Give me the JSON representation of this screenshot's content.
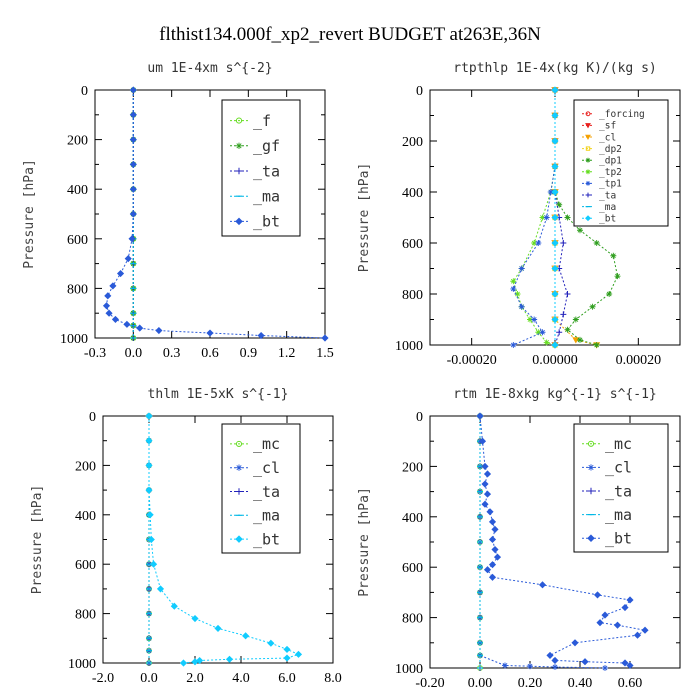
{
  "title": "flthist134.000f_xp2_revert  BUDGET at263E,36N",
  "colors": {
    "red": "#e8201e",
    "orange": "#f4a000",
    "yellow": "#f2d21a",
    "green": "#2f9e1e",
    "lightgreen": "#66dd22",
    "blue": "#2a5ad8",
    "darkblue": "#2222bb",
    "cyan": "#00b8e6",
    "brightcyan": "#11ccff",
    "black": "#000000"
  },
  "chart_data": [
    {
      "type": "line",
      "title": "um  1E-4xm s^{-2}",
      "ylabel": "Pressure [hPa]",
      "xlim": [
        -0.3,
        1.5
      ],
      "ylim": [
        1000,
        0
      ],
      "xticks": [
        "-0.3",
        "0.0",
        "0.3",
        "0.6",
        "0.9",
        "1.2",
        "1.5"
      ],
      "yticks": [
        "0",
        "200",
        "400",
        "600",
        "800",
        "1000"
      ],
      "legend_position": "top-right",
      "series": [
        {
          "name": "_f",
          "color": "#66dd22",
          "marker": "circle",
          "x": [
            0,
            0,
            0,
            0,
            0,
            0,
            0,
            0,
            0,
            0,
            0,
            0
          ],
          "y": [
            0,
            100,
            200,
            300,
            400,
            500,
            600,
            700,
            800,
            900,
            950,
            1000
          ]
        },
        {
          "name": "_gf",
          "color": "#2f9e1e",
          "marker": "star",
          "x": [
            0,
            0,
            0,
            0,
            0,
            0,
            0,
            0,
            0,
            0,
            0,
            0
          ],
          "y": [
            0,
            100,
            200,
            300,
            400,
            500,
            600,
            700,
            800,
            900,
            950,
            1000
          ]
        },
        {
          "name": "_ta",
          "color": "#2222bb",
          "marker": "plus",
          "x": [
            0,
            0,
            0,
            0,
            0,
            0,
            0,
            0,
            0,
            0,
            0,
            0
          ],
          "y": [
            0,
            100,
            200,
            300,
            400,
            500,
            600,
            700,
            800,
            900,
            950,
            1000
          ]
        },
        {
          "name": "_ma",
          "color": "#00b8e6",
          "marker": "dash",
          "x": [
            0,
            0,
            0,
            0,
            0,
            0,
            0,
            0,
            0,
            0,
            0,
            0
          ],
          "y": [
            0,
            100,
            200,
            300,
            400,
            500,
            600,
            700,
            800,
            900,
            950,
            1000
          ]
        },
        {
          "name": "_bt",
          "color": "#2a5ad8",
          "marker": "diamond",
          "x": [
            0,
            0,
            0,
            0,
            0,
            0,
            -0.01,
            -0.04,
            -0.1,
            -0.16,
            -0.2,
            -0.21,
            -0.19,
            -0.14,
            -0.05,
            0.05,
            0.2,
            0.6,
            1.0,
            1.5
          ],
          "y": [
            0,
            100,
            200,
            300,
            400,
            500,
            600,
            680,
            740,
            790,
            830,
            870,
            900,
            925,
            945,
            960,
            970,
            980,
            990,
            1000
          ]
        }
      ]
    },
    {
      "type": "line",
      "title": "rtpthlp  1E-4x(kg K)/(kg s)",
      "ylabel": "Pressure [hPa]",
      "xlim": [
        -0.0003,
        0.0003
      ],
      "ylim": [
        1000,
        0
      ],
      "xticks": [
        "-0.00020",
        "0.00000",
        "0.00020"
      ],
      "xtick_values": [
        -0.0002,
        0,
        0.0002
      ],
      "yticks": [
        "0",
        "200",
        "400",
        "600",
        "800",
        "1000"
      ],
      "legend_position": "top-right",
      "series": [
        {
          "name": "_forcing",
          "color": "#e8201e",
          "marker": "circle",
          "x": [
            0,
            0,
            0,
            0,
            0,
            0,
            0,
            0,
            0,
            0,
            0
          ],
          "y": [
            0,
            100,
            200,
            300,
            400,
            500,
            600,
            700,
            800,
            900,
            1000
          ]
        },
        {
          "name": "_sf",
          "color": "#e8201e",
          "marker": "tri",
          "x": [
            0,
            0,
            0,
            0,
            0,
            0,
            0,
            0,
            0,
            0,
            0
          ],
          "y": [
            0,
            100,
            200,
            300,
            400,
            500,
            600,
            700,
            800,
            900,
            1000
          ]
        },
        {
          "name": "_cl",
          "color": "#f4a000",
          "marker": "tri",
          "x": [
            0,
            0,
            0,
            0,
            0,
            0,
            0,
            0,
            0,
            0,
            5e-05,
            0.0001
          ],
          "y": [
            0,
            100,
            200,
            300,
            400,
            500,
            600,
            700,
            800,
            900,
            980,
            1000
          ]
        },
        {
          "name": "_dp2",
          "color": "#f2d21a",
          "marker": "square",
          "x": [
            0,
            0,
            0,
            0,
            0,
            0,
            0,
            0,
            0,
            0,
            0
          ],
          "y": [
            0,
            100,
            200,
            300,
            400,
            500,
            600,
            700,
            800,
            900,
            1000
          ]
        },
        {
          "name": "_dp1",
          "color": "#2f9e1e",
          "marker": "star",
          "x": [
            0,
            0,
            0,
            0,
            0,
            1e-05,
            3e-05,
            6e-05,
            0.0001,
            0.00014,
            0.00015,
            0.00013,
            9e-05,
            5e-05,
            3e-05,
            6e-05,
            0.0001
          ],
          "y": [
            0,
            100,
            200,
            300,
            400,
            450,
            500,
            550,
            600,
            650,
            730,
            800,
            850,
            900,
            940,
            980,
            1000
          ]
        },
        {
          "name": "_tp2",
          "color": "#66dd22",
          "marker": "star",
          "x": [
            0,
            0,
            0,
            0,
            -1e-05,
            -3e-05,
            -5e-05,
            -8e-05,
            -0.0001,
            -9e-05,
            -8e-05,
            -6e-05,
            -4e-05,
            -2e-05,
            0
          ],
          "y": [
            0,
            100,
            200,
            300,
            400,
            500,
            600,
            700,
            750,
            800,
            850,
            900,
            950,
            990,
            1000
          ]
        },
        {
          "name": "_tp1",
          "color": "#2a5ad8",
          "marker": "star",
          "x": [
            0,
            0,
            0,
            0,
            -1e-05,
            -2e-05,
            -4e-05,
            -8e-05,
            -0.0001,
            -8e-05,
            -5e-05,
            -3e-05,
            -0.0001
          ],
          "y": [
            0,
            100,
            200,
            300,
            400,
            500,
            600,
            700,
            780,
            850,
            900,
            950,
            1000
          ]
        },
        {
          "name": "_ta",
          "color": "#2222bb",
          "marker": "plus",
          "x": [
            0,
            0,
            0,
            0,
            0,
            1e-05,
            2e-05,
            1e-05,
            3e-05,
            2e-05,
            1e-05,
            0
          ],
          "y": [
            0,
            100,
            200,
            300,
            400,
            500,
            600,
            700,
            800,
            880,
            950,
            1000
          ]
        },
        {
          "name": "_ma",
          "color": "#00b8e6",
          "marker": "dash",
          "x": [
            0,
            0,
            0,
            0,
            0,
            0,
            0,
            0,
            0,
            0,
            0
          ],
          "y": [
            0,
            100,
            200,
            300,
            400,
            500,
            600,
            700,
            800,
            900,
            1000
          ]
        },
        {
          "name": "_bt",
          "color": "#11ccff",
          "marker": "diamond",
          "x": [
            0,
            0,
            0,
            0,
            0,
            0,
            0,
            0,
            0,
            0,
            0
          ],
          "y": [
            0,
            100,
            200,
            300,
            400,
            500,
            600,
            700,
            800,
            900,
            1000
          ]
        }
      ]
    },
    {
      "type": "line",
      "title": "thlm  1E-5xK s^{-1}",
      "ylabel": "Pressure [hPa]",
      "xlim": [
        -2.0,
        8.0
      ],
      "ylim": [
        1000,
        0
      ],
      "xticks": [
        "-2.0",
        "0.0",
        "2.0",
        "4.0",
        "6.0",
        "8.0"
      ],
      "yticks": [
        "0",
        "200",
        "400",
        "600",
        "800",
        "1000"
      ],
      "legend_position": "top-right",
      "series": [
        {
          "name": "_mc",
          "color": "#66dd22",
          "marker": "circle",
          "x": [
            0,
            0,
            0,
            0,
            0,
            0,
            0,
            0,
            0,
            0,
            0,
            0
          ],
          "y": [
            0,
            100,
            200,
            300,
            400,
            500,
            600,
            700,
            800,
            900,
            950,
            1000
          ]
        },
        {
          "name": "_cl",
          "color": "#2a5ad8",
          "marker": "star",
          "x": [
            0,
            0,
            0,
            0,
            0,
            0,
            0,
            0,
            0,
            0,
            0,
            0
          ],
          "y": [
            0,
            100,
            200,
            300,
            400,
            500,
            600,
            700,
            800,
            900,
            950,
            1000
          ]
        },
        {
          "name": "_ta",
          "color": "#2222bb",
          "marker": "plus",
          "x": [
            0,
            0,
            0,
            0,
            0,
            0,
            0,
            0,
            0,
            0,
            0,
            0
          ],
          "y": [
            0,
            100,
            200,
            300,
            400,
            500,
            600,
            700,
            800,
            900,
            950,
            1000
          ]
        },
        {
          "name": "_ma",
          "color": "#00b8e6",
          "marker": "dash",
          "x": [
            0,
            0,
            0,
            0,
            0,
            0,
            0,
            0,
            0,
            0,
            0,
            0
          ],
          "y": [
            0,
            100,
            200,
            300,
            400,
            500,
            600,
            700,
            800,
            900,
            950,
            1000
          ]
        },
        {
          "name": "_bt",
          "color": "#11ccff",
          "marker": "diamond",
          "x": [
            0,
            0,
            0,
            0,
            0.05,
            0.1,
            0.2,
            0.5,
            1.1,
            2.0,
            3.0,
            4.2,
            5.3,
            6.0,
            6.5,
            6.0,
            3.5,
            2.2,
            2.0,
            1.5
          ],
          "y": [
            0,
            100,
            200,
            300,
            400,
            500,
            600,
            700,
            770,
            820,
            860,
            890,
            920,
            945,
            965,
            980,
            985,
            990,
            995,
            1000
          ]
        }
      ]
    },
    {
      "type": "line",
      "title": "rtm  1E-8xkg kg^{-1} s^{-1}",
      "ylabel": "Pressure [hPa]",
      "xlim": [
        -0.2,
        0.8
      ],
      "ylim": [
        1000,
        0
      ],
      "xticks": [
        "-0.20",
        "0.00",
        "0.20",
        "0.40",
        "0.60"
      ],
      "xtick_values": [
        -0.2,
        0,
        0.2,
        0.4,
        0.6
      ],
      "yticks": [
        "0",
        "200",
        "400",
        "600",
        "800",
        "1000"
      ],
      "legend_position": "top-right",
      "series": [
        {
          "name": "_mc",
          "color": "#66dd22",
          "marker": "circle",
          "x": [
            0,
            0,
            0,
            0,
            0,
            0,
            0,
            0,
            0,
            0,
            0,
            0
          ],
          "y": [
            0,
            100,
            200,
            300,
            400,
            500,
            600,
            700,
            800,
            900,
            950,
            1000
          ]
        },
        {
          "name": "_cl",
          "color": "#2a5ad8",
          "marker": "star",
          "x": [
            0,
            0,
            0,
            0,
            0,
            0,
            0,
            0,
            0,
            0,
            0,
            0.1,
            0.2,
            0.3,
            0.5
          ],
          "y": [
            0,
            100,
            200,
            300,
            400,
            500,
            600,
            700,
            800,
            900,
            950,
            990,
            993,
            996,
            1000
          ]
        },
        {
          "name": "_ta",
          "color": "#2222bb",
          "marker": "plus",
          "x": [
            0,
            0,
            0,
            0,
            0,
            0,
            0,
            0,
            0,
            0,
            0,
            0
          ],
          "y": [
            0,
            100,
            200,
            300,
            400,
            500,
            600,
            700,
            800,
            900,
            950,
            1000
          ]
        },
        {
          "name": "_ma",
          "color": "#00b8e6",
          "marker": "dash",
          "x": [
            0,
            0,
            0,
            0,
            0,
            0,
            0,
            0,
            0,
            0,
            0,
            0
          ],
          "y": [
            0,
            100,
            200,
            300,
            400,
            500,
            600,
            700,
            800,
            900,
            950,
            1000
          ]
        },
        {
          "name": "_bt",
          "color": "#2a5ad8",
          "marker": "diamond",
          "x": [
            0,
            0.01,
            0.02,
            0.03,
            0.02,
            0.03,
            0.02,
            0.04,
            0.05,
            0.06,
            0.05,
            0.06,
            0.07,
            0.05,
            0.03,
            0.05,
            0.25,
            0.47,
            0.6,
            0.58,
            0.5,
            0.48,
            0.55,
            0.66,
            0.63,
            0.38,
            0.28,
            0.3,
            0.42,
            0.58,
            0.6
          ],
          "y": [
            0,
            100,
            200,
            230,
            270,
            310,
            350,
            380,
            420,
            450,
            490,
            530,
            560,
            590,
            610,
            640,
            670,
            710,
            730,
            760,
            790,
            820,
            830,
            850,
            870,
            900,
            950,
            970,
            975,
            980,
            990
          ]
        }
      ]
    }
  ]
}
